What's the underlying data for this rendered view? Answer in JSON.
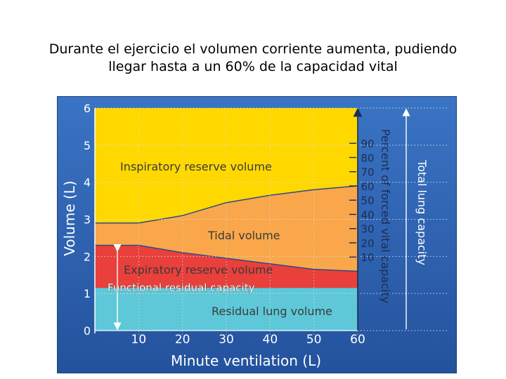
{
  "slide": {
    "title_line1": "Durante el ejercicio el volumen corriente aumenta, pudiendo",
    "title_line2": "llegar hasta a un 60% de la capacidad vital"
  },
  "chart_data": {
    "type": "area",
    "xlabel": "Minute ventilation (L)",
    "ylabel": "Volume (L)",
    "xlim": [
      0,
      60
    ],
    "ylim": [
      0,
      6
    ],
    "x_ticks": [
      "10",
      "20",
      "30",
      "40",
      "50",
      "60"
    ],
    "y_ticks": [
      "0",
      "1",
      "2",
      "3",
      "4",
      "5",
      "6"
    ],
    "right_axis_label": "Percent of forced vital capacity",
    "right_ticks": [
      "10",
      "20",
      "30",
      "40",
      "50",
      "60",
      "70",
      "80",
      "90"
    ],
    "far_right_label": "Total lung capacity",
    "frc_label": "Functional residual capacity",
    "x": [
      0,
      10,
      20,
      30,
      40,
      50,
      60
    ],
    "boundaries": {
      "residual_top": [
        1.15,
        1.15,
        1.15,
        1.15,
        1.15,
        1.15,
        1.15
      ],
      "expiratory_reserve_top": [
        2.3,
        2.3,
        2.1,
        1.95,
        1.8,
        1.65,
        1.6
      ],
      "tidal_top": [
        2.9,
        2.9,
        3.1,
        3.45,
        3.65,
        3.8,
        3.9
      ],
      "inspiratory_reserve_top": [
        6.0,
        6.0,
        6.0,
        6.0,
        6.0,
        6.0,
        6.0
      ]
    },
    "regions": [
      {
        "name": "Inspiratory reserve volume",
        "color": "#ffd800"
      },
      {
        "name": "Tidal volume",
        "color": "#f9a74a"
      },
      {
        "name": "Expiratory reserve volume",
        "color": "#e9403b"
      },
      {
        "name": "Residual lung volume",
        "color": "#5ec8d8"
      }
    ],
    "background_color": "#2e64b3"
  }
}
